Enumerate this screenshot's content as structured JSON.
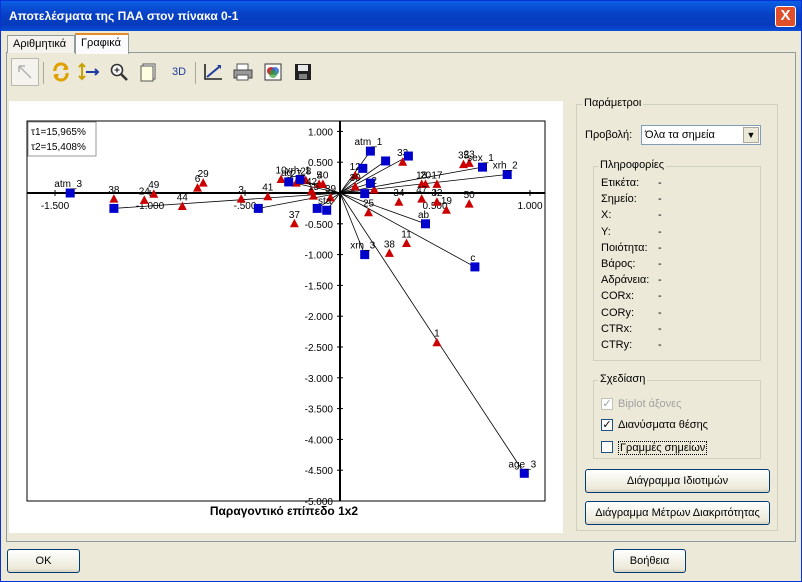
{
  "window": {
    "title": "Αποτελέσματα της ΠΑΑ στον πίνακα 0-1",
    "close_label": "X"
  },
  "tabs": [
    {
      "label": "Αριθμητικά"
    },
    {
      "label": "Γραφικά"
    }
  ],
  "toolbar": {
    "buttons": [
      "pointer-icon",
      "refresh-icon",
      "move-icon",
      "zoom-icon",
      "page-icon",
      "3d-button",
      "axes-icon",
      "print-icon",
      "image-icon",
      "save-icon"
    ],
    "label_3d": "3D"
  },
  "chart_data": {
    "type": "scatter",
    "title": "Παραγοντικό επίπεδο 1x2",
    "inertia": [
      "τ1=15,965%",
      "τ2=15,408%"
    ],
    "xlim": [
      -1.5,
      1.0
    ],
    "ylim": [
      -5.0,
      1.0
    ],
    "x_ticks": [
      "-1.500",
      "-1.000",
      "-.500",
      "0.500",
      "1.000"
    ],
    "y_ticks": [
      "1.000",
      "0.500",
      "-0.500",
      "-1.000",
      "-1.500",
      "-2.000",
      "-2.500",
      "-3.000",
      "-3.500",
      "-4.000",
      "-4.500",
      "-5.000"
    ],
    "grid": false,
    "legend": "none",
    "colors": {
      "individuals": "#cc0000",
      "variables": "#0000cc",
      "vectors": "#000000"
    },
    "individuals": [
      {
        "label": "38",
        "x": -1.19,
        "y": -0.1
      },
      {
        "label": "24",
        "x": -1.03,
        "y": -0.12
      },
      {
        "label": "49",
        "x": -0.98,
        "y": -0.02
      },
      {
        "label": "44",
        "x": -0.83,
        "y": -0.22
      },
      {
        "label": "29",
        "x": -0.72,
        "y": 0.16
      },
      {
        "label": "6",
        "x": -0.75,
        "y": 0.08
      },
      {
        "label": "3",
        "x": -0.52,
        "y": -0.1
      },
      {
        "label": "41",
        "x": -0.38,
        "y": -0.06
      },
      {
        "label": "37",
        "x": -0.24,
        "y": -0.5
      },
      {
        "label": "10",
        "x": -0.31,
        "y": 0.22
      },
      {
        "label": "27",
        "x": -0.23,
        "y": 0.16
      },
      {
        "label": "28",
        "x": -0.18,
        "y": 0.2
      },
      {
        "label": "42",
        "x": -0.15,
        "y": 0.03
      },
      {
        "label": "5",
        "x": -0.11,
        "y": 0.14
      },
      {
        "label": "40",
        "x": -0.09,
        "y": 0.14
      },
      {
        "label": "15",
        "x": -0.14,
        "y": -0.05
      },
      {
        "label": "39",
        "x": -0.05,
        "y": -0.08
      },
      {
        "label": "12",
        "x": 0.08,
        "y": 0.28
      },
      {
        "label": "30",
        "x": 0.08,
        "y": 0.1
      },
      {
        "label": "2",
        "x": 0.18,
        "y": 0.05
      },
      {
        "label": "33",
        "x": 0.33,
        "y": 0.5
      },
      {
        "label": "18",
        "x": 0.43,
        "y": 0.14
      },
      {
        "label": "20",
        "x": 0.45,
        "y": 0.14
      },
      {
        "label": "17",
        "x": 0.51,
        "y": 0.14
      },
      {
        "label": "23",
        "x": 0.68,
        "y": 0.48
      },
      {
        "label": "35",
        "x": 0.65,
        "y": 0.46
      },
      {
        "label": "34",
        "x": 0.31,
        "y": -0.15
      },
      {
        "label": "47",
        "x": 0.43,
        "y": -0.1
      },
      {
        "label": "32",
        "x": 0.51,
        "y": -0.15
      },
      {
        "label": "19",
        "x": 0.56,
        "y": -0.28
      },
      {
        "label": "50",
        "x": 0.68,
        "y": -0.18
      },
      {
        "label": "25",
        "x": 0.15,
        "y": -0.32
      },
      {
        "label": "11",
        "x": 0.35,
        "y": -0.82
      },
      {
        "label": "38",
        "x": 0.26,
        "y": -0.98
      },
      {
        "label": "1",
        "x": 0.51,
        "y": -2.43
      }
    ],
    "variables": [
      {
        "label": "atm_3",
        "x": -1.42,
        "y": 0.0
      },
      {
        "label": "",
        "x": -1.19,
        "y": -0.25
      },
      {
        "label": "",
        "x": -0.43,
        "y": -0.25
      },
      {
        "label": "ag",
        "x": -0.27,
        "y": 0.18
      },
      {
        "label": "xrh_1",
        "x": -0.21,
        "y": 0.22
      },
      {
        "label": "",
        "x": -0.12,
        "y": -0.25
      },
      {
        "label": "sta",
        "x": -0.07,
        "y": -0.28
      },
      {
        "label": "atm_1",
        "x": 0.16,
        "y": 0.68
      },
      {
        "label": "",
        "x": 0.24,
        "y": 0.52
      },
      {
        "label": "",
        "x": 0.36,
        "y": 0.6
      },
      {
        "label": "",
        "x": 0.12,
        "y": 0.4
      },
      {
        "label": "",
        "x": 0.16,
        "y": 0.16
      },
      {
        "label": "",
        "x": 0.13,
        "y": -0.01
      },
      {
        "label": "sex_1",
        "x": 0.75,
        "y": 0.42
      },
      {
        "label": "xrh_2",
        "x": 0.88,
        "y": 0.3
      },
      {
        "label": "ab",
        "x": 0.45,
        "y": -0.5
      },
      {
        "label": "xrh_3",
        "x": 0.13,
        "y": -1.0
      },
      {
        "label": "c",
        "x": 0.71,
        "y": -1.2
      },
      {
        "label": "age_3",
        "x": 0.97,
        "y": -4.55
      }
    ]
  },
  "params": {
    "legend": "Παράμετροι",
    "view_label": "Προβολή:",
    "view_value": "Όλα τα σημεία",
    "info_legend": "Πληροφορίες",
    "info": [
      {
        "label": "Ετικέτα:",
        "value": "-"
      },
      {
        "label": "Σημείο:",
        "value": "-"
      },
      {
        "label": "X:",
        "value": "-"
      },
      {
        "label": "Y:",
        "value": "-"
      },
      {
        "label": "Ποιότητα:",
        "value": "-"
      },
      {
        "label": "Βάρος:",
        "value": "-"
      },
      {
        "label": "Αδράνεια:",
        "value": "-"
      },
      {
        "label": "CORx:",
        "value": "-"
      },
      {
        "label": "CORy:",
        "value": "-"
      },
      {
        "label": "CTRx:",
        "value": "-"
      },
      {
        "label": "CTRy:",
        "value": "-"
      }
    ],
    "draw_legend": "Σχεδίαση",
    "checkboxes": [
      {
        "label": "Biplot άξονες",
        "checked": true,
        "enabled": false
      },
      {
        "label": "Διανύσματα θέσης",
        "checked": true,
        "enabled": true
      },
      {
        "label": "Γραμμές σημείων",
        "checked": false,
        "enabled": true
      }
    ],
    "btn_eigen": "Διάγραμμα Ιδιοτιμών",
    "btn_discr": "Διάγραμμα Μέτρων Διακριτότητας"
  },
  "footer": {
    "ok": "OK",
    "help": "Βοήθεια"
  }
}
